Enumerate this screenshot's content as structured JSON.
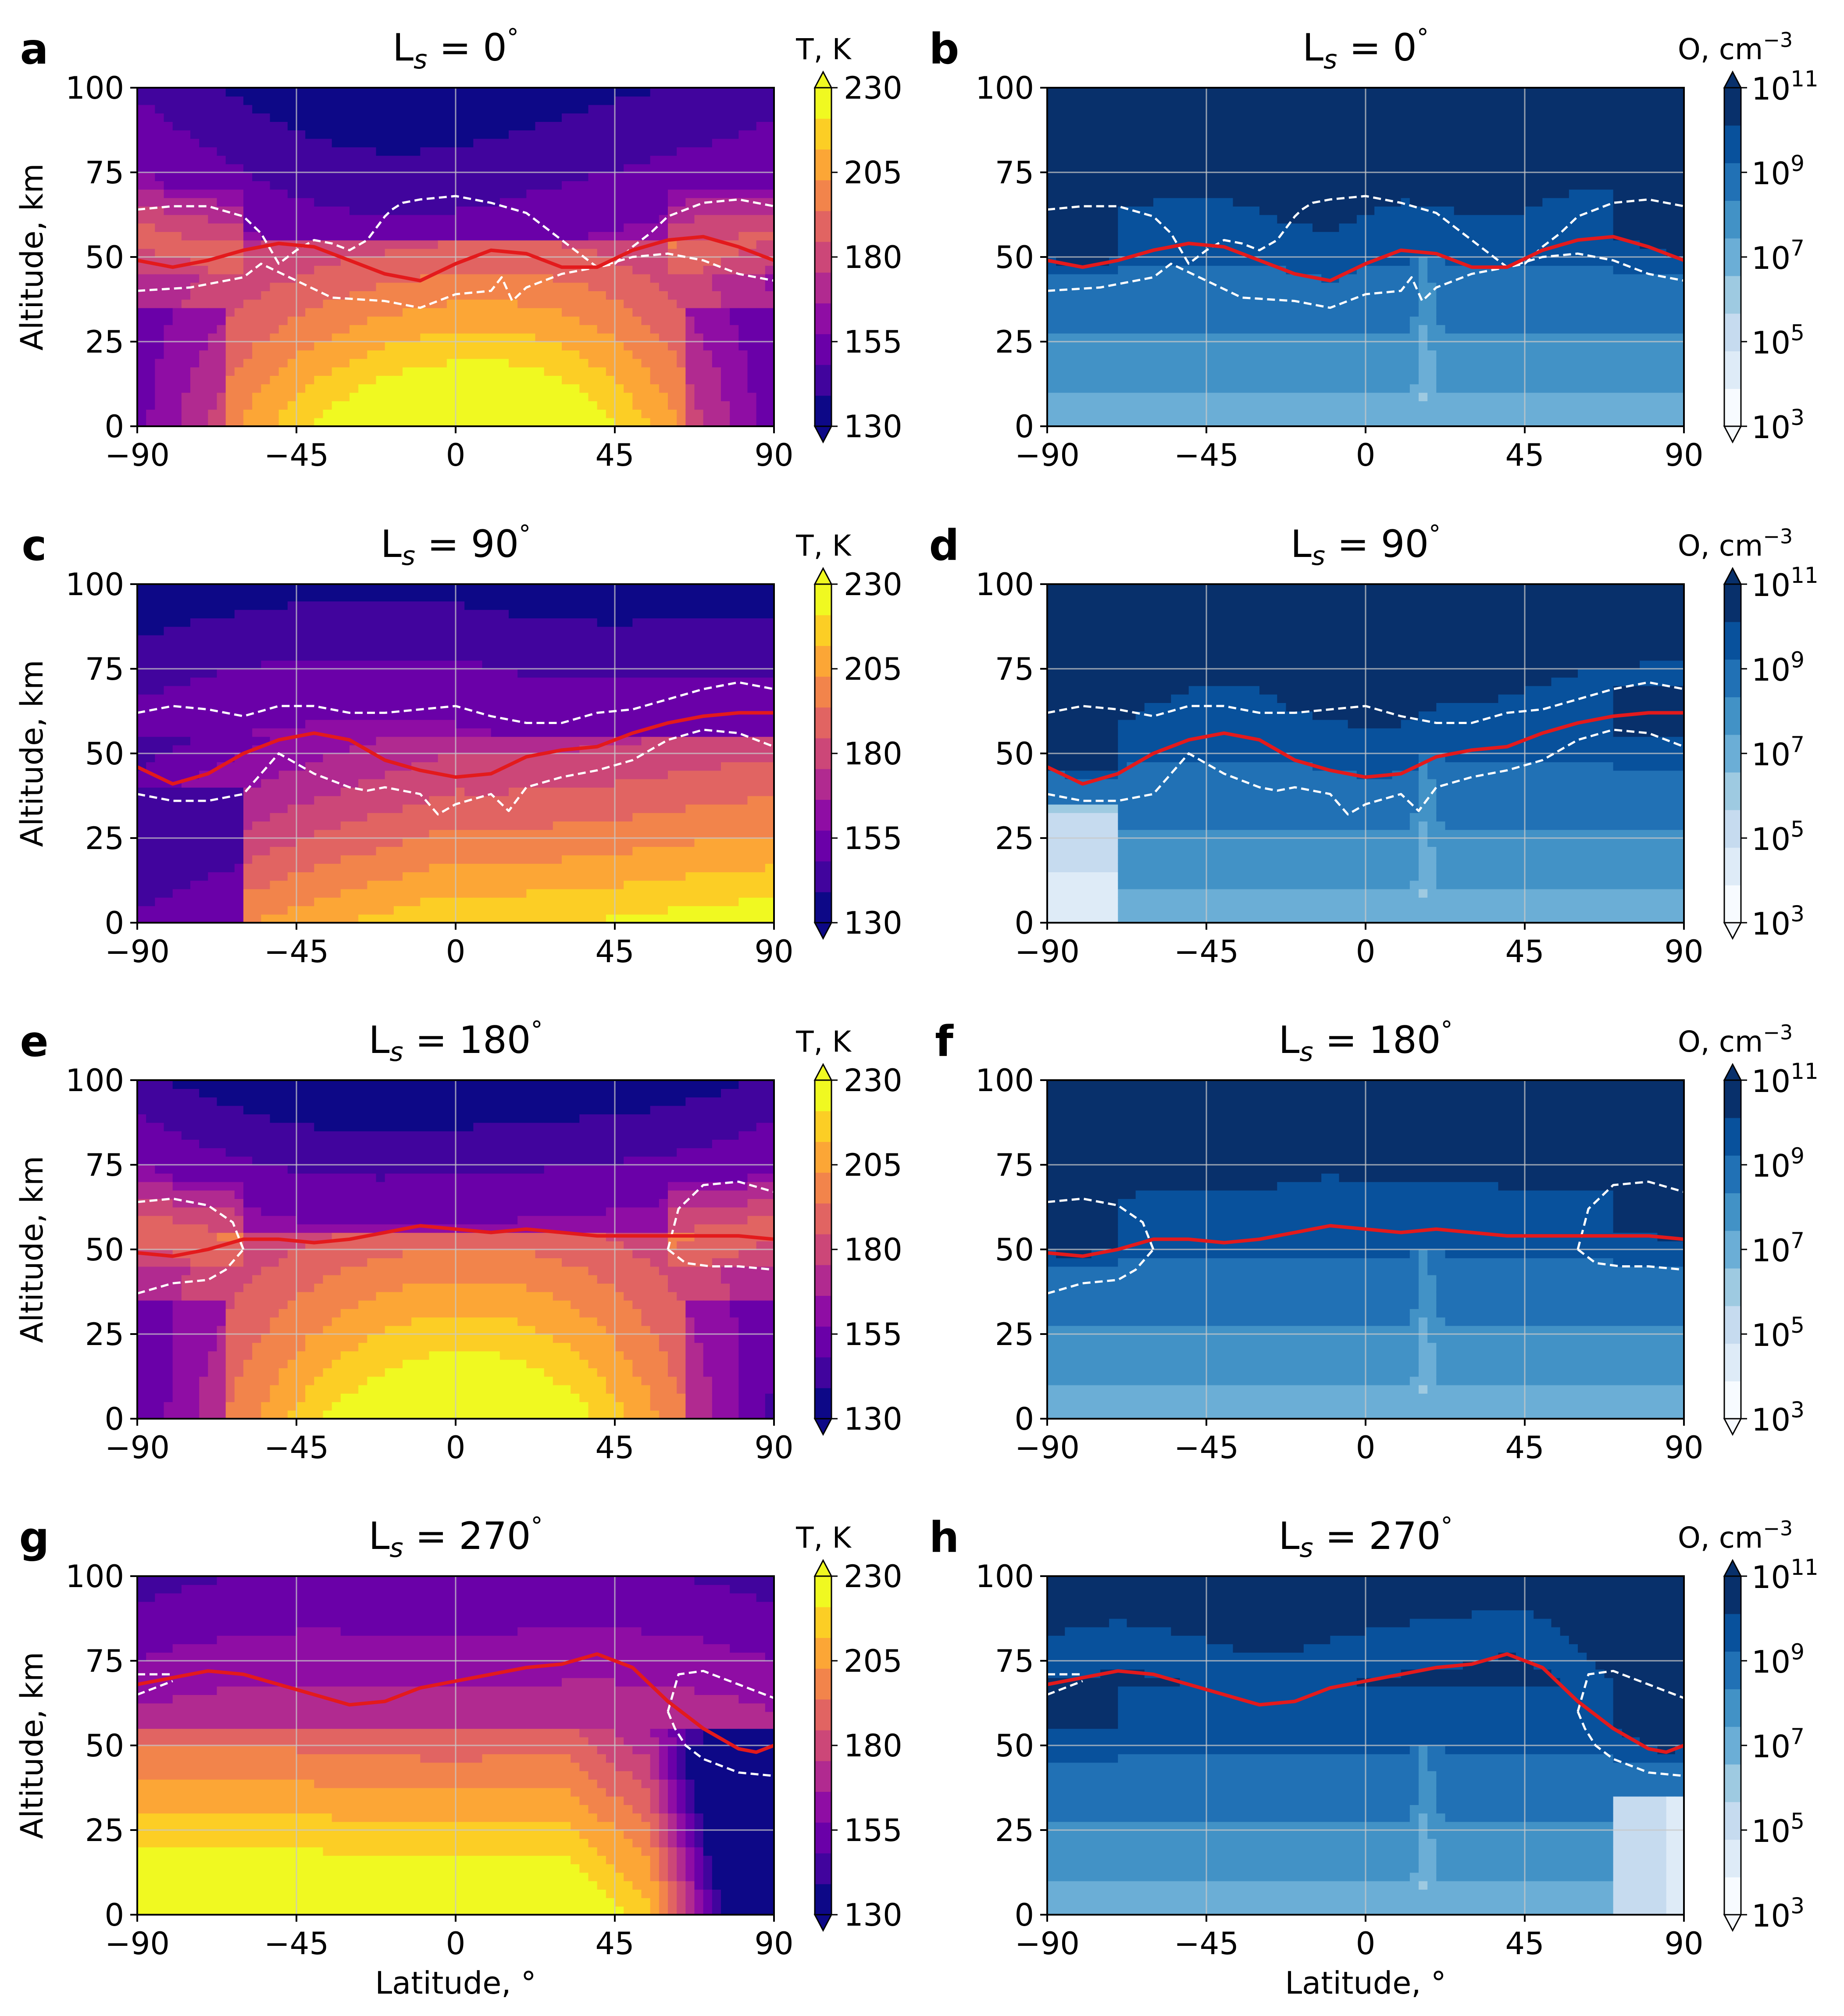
{
  "figure": {
    "xlabel": "Latitude, °",
    "ylabel": "Altitude, km",
    "x_ticks": [
      "−90",
      "−45",
      "0",
      "45",
      "90"
    ],
    "y_ticks": [
      "0",
      "25",
      "50",
      "75",
      "100"
    ]
  },
  "colorbars": {
    "temperature": {
      "title": "T, K",
      "tick_labels": [
        "230",
        "205",
        "180",
        "155",
        "130"
      ],
      "levels": [
        130,
        155,
        180,
        205,
        230
      ],
      "colors": [
        "#0d0887",
        "#41049d",
        "#6a00a8",
        "#8f0da4",
        "#b12a90",
        "#cc4778",
        "#e16462",
        "#f2844b",
        "#fca636",
        "#fcce25",
        "#f0f921"
      ]
    },
    "oxygen": {
      "title_base": "O, cm",
      "title_exp": "−3",
      "tick_base": "10",
      "tick_exponents": [
        "11",
        "9",
        "7",
        "5",
        "3"
      ],
      "colors": [
        "#f7fbff",
        "#deebf7",
        "#c6dbef",
        "#9ecae1",
        "#6baed6",
        "#4292c6",
        "#2171b5",
        "#08519c",
        "#08306b"
      ]
    }
  },
  "panels": [
    {
      "letter": "a",
      "title": "L",
      "sub": "s",
      "title_value": " = 0",
      "deg": "°",
      "field": "T"
    },
    {
      "letter": "b",
      "title": "L",
      "sub": "s",
      "title_value": " = 0",
      "deg": "°",
      "field": "O"
    },
    {
      "letter": "c",
      "title": "L",
      "sub": "s",
      "title_value": " = 90",
      "deg": "°",
      "field": "T"
    },
    {
      "letter": "d",
      "title": "L",
      "sub": "s",
      "title_value": " = 90",
      "deg": "°",
      "field": "O"
    },
    {
      "letter": "e",
      "title": "L",
      "sub": "s",
      "title_value": " = 180",
      "deg": "°",
      "field": "T"
    },
    {
      "letter": "f",
      "title": "L",
      "sub": "s",
      "title_value": " = 180",
      "deg": "°",
      "field": "O"
    },
    {
      "letter": "g",
      "title": "L",
      "sub": "s",
      "title_value": " = 270",
      "deg": "°",
      "field": "T"
    },
    {
      "letter": "h",
      "title": "L",
      "sub": "s",
      "title_value": " = 270",
      "deg": "°",
      "field": "O"
    }
  ],
  "chart_data": [
    {
      "panel": "a",
      "type": "heatmap",
      "variable": "T, K",
      "season": 0,
      "xlim": [
        -90,
        90
      ],
      "ylim": [
        0,
        100
      ],
      "clim": [
        130,
        230
      ],
      "grid": true,
      "red_line": {
        "x": [
          -90,
          -80,
          -70,
          -60,
          -50,
          -40,
          -30,
          -20,
          -10,
          0,
          10,
          20,
          30,
          40,
          50,
          60,
          70,
          80,
          90
        ],
        "y": [
          49,
          47,
          49,
          52,
          54,
          53,
          49,
          45,
          43,
          48,
          52,
          51,
          47,
          47,
          52,
          55,
          56,
          53,
          49
        ]
      },
      "dashed_upper": {
        "x": [
          -90,
          -80,
          -70,
          -60,
          -55,
          -50,
          -45,
          -40,
          -35,
          -30,
          -25,
          -20,
          -18,
          -15,
          -10,
          0,
          10,
          20,
          30,
          40,
          45,
          50,
          55,
          60,
          70,
          80,
          90
        ],
        "y": [
          64,
          65,
          65,
          62,
          57,
          48,
          52,
          55,
          54,
          52,
          55,
          62,
          64,
          66,
          67,
          68,
          66,
          63,
          55,
          47,
          48,
          53,
          57,
          62,
          66,
          67,
          65
        ]
      },
      "dashed_lower": {
        "x": [
          -90,
          -75,
          -60,
          -55,
          -45,
          -35,
          -20,
          -10,
          0,
          10,
          13,
          16,
          20,
          30,
          40,
          50,
          60,
          70,
          80,
          90
        ],
        "y": [
          40,
          41,
          44,
          48,
          43,
          38,
          37,
          35,
          39,
          40,
          44,
          37,
          41,
          45,
          47,
          50,
          51,
          49,
          45,
          43
        ]
      }
    },
    {
      "panel": "b",
      "type": "heatmap",
      "variable": "O, cm^-3",
      "season": 0,
      "xlim": [
        -90,
        90
      ],
      "ylim": [
        0,
        100
      ],
      "clim_log10": [
        3,
        11
      ],
      "grid": true,
      "red_line": {
        "x": [
          -90,
          -80,
          -70,
          -60,
          -50,
          -40,
          -30,
          -20,
          -10,
          0,
          10,
          20,
          30,
          40,
          50,
          60,
          70,
          80,
          90
        ],
        "y": [
          49,
          47,
          49,
          52,
          54,
          53,
          49,
          45,
          43,
          48,
          52,
          51,
          47,
          47,
          52,
          55,
          56,
          53,
          49
        ]
      },
      "dashed_upper": {
        "x": [
          -90,
          -80,
          -70,
          -60,
          -55,
          -50,
          -45,
          -40,
          -35,
          -30,
          -25,
          -20,
          -18,
          -15,
          -10,
          0,
          10,
          20,
          30,
          40,
          45,
          50,
          55,
          60,
          70,
          80,
          90
        ],
        "y": [
          64,
          65,
          65,
          62,
          57,
          48,
          52,
          55,
          54,
          52,
          55,
          62,
          64,
          66,
          67,
          68,
          66,
          63,
          55,
          47,
          48,
          53,
          57,
          62,
          66,
          67,
          65
        ]
      },
      "dashed_lower": {
        "x": [
          -90,
          -75,
          -60,
          -55,
          -45,
          -35,
          -20,
          -10,
          0,
          10,
          13,
          16,
          20,
          30,
          40,
          50,
          60,
          70,
          80,
          90
        ],
        "y": [
          40,
          41,
          44,
          48,
          43,
          38,
          37,
          35,
          39,
          40,
          44,
          37,
          41,
          45,
          47,
          50,
          51,
          49,
          45,
          43
        ]
      }
    },
    {
      "panel": "c",
      "type": "heatmap",
      "variable": "T, K",
      "season": 90,
      "xlim": [
        -90,
        90
      ],
      "ylim": [
        0,
        100
      ],
      "clim": [
        130,
        230
      ],
      "grid": true,
      "red_line": {
        "x": [
          -90,
          -80,
          -70,
          -60,
          -50,
          -40,
          -30,
          -20,
          -10,
          0,
          10,
          20,
          30,
          40,
          50,
          60,
          70,
          80,
          90
        ],
        "y": [
          46,
          41,
          44,
          50,
          54,
          56,
          54,
          48,
          45,
          43,
          44,
          49,
          51,
          52,
          56,
          59,
          61,
          62,
          62
        ]
      },
      "dashed_upper": {
        "x": [
          -90,
          -80,
          -70,
          -60,
          -50,
          -40,
          -30,
          -20,
          -10,
          0,
          10,
          20,
          30,
          40,
          50,
          60,
          70,
          80,
          90
        ],
        "y": [
          62,
          64,
          63,
          61,
          64,
          64,
          62,
          62,
          63,
          64,
          61,
          59,
          59,
          62,
          63,
          66,
          69,
          71,
          69
        ]
      },
      "dashed_lower": {
        "x": [
          -90,
          -80,
          -70,
          -60,
          -55,
          -50,
          -45,
          -40,
          -35,
          -30,
          -25,
          -20,
          -10,
          -5,
          0,
          10,
          15,
          20,
          30,
          40,
          50,
          60,
          70,
          80,
          90
        ],
        "y": [
          38,
          36,
          36,
          38,
          44,
          50,
          47,
          44,
          42,
          40,
          39,
          40,
          38,
          32,
          35,
          38,
          33,
          40,
          43,
          45,
          48,
          54,
          57,
          56,
          52
        ]
      }
    },
    {
      "panel": "d",
      "type": "heatmap",
      "variable": "O, cm^-3",
      "season": 90,
      "xlim": [
        -90,
        90
      ],
      "ylim": [
        0,
        100
      ],
      "clim_log10": [
        3,
        11
      ],
      "grid": true,
      "red_line": {
        "x": [
          -90,
          -80,
          -70,
          -60,
          -50,
          -40,
          -30,
          -20,
          -10,
          0,
          10,
          20,
          30,
          40,
          50,
          60,
          70,
          80,
          90
        ],
        "y": [
          46,
          41,
          44,
          50,
          54,
          56,
          54,
          48,
          45,
          43,
          44,
          49,
          51,
          52,
          56,
          59,
          61,
          62,
          62
        ]
      },
      "dashed_upper": {
        "x": [
          -90,
          -80,
          -70,
          -60,
          -50,
          -40,
          -30,
          -20,
          -10,
          0,
          10,
          20,
          30,
          40,
          50,
          60,
          70,
          80,
          90
        ],
        "y": [
          62,
          64,
          63,
          61,
          64,
          64,
          62,
          62,
          63,
          64,
          61,
          59,
          59,
          62,
          63,
          66,
          69,
          71,
          69
        ]
      },
      "dashed_lower": {
        "x": [
          -90,
          -80,
          -70,
          -60,
          -55,
          -50,
          -45,
          -40,
          -35,
          -30,
          -25,
          -20,
          -10,
          -5,
          0,
          10,
          15,
          20,
          30,
          40,
          50,
          60,
          70,
          80,
          90
        ],
        "y": [
          38,
          36,
          36,
          38,
          44,
          50,
          47,
          44,
          42,
          40,
          39,
          40,
          38,
          32,
          35,
          38,
          33,
          40,
          43,
          45,
          48,
          54,
          57,
          56,
          52
        ]
      }
    },
    {
      "panel": "e",
      "type": "heatmap",
      "variable": "T, K",
      "season": 180,
      "xlim": [
        -90,
        90
      ],
      "ylim": [
        0,
        100
      ],
      "clim": [
        130,
        230
      ],
      "grid": true,
      "red_line": {
        "x": [
          -90,
          -80,
          -70,
          -60,
          -50,
          -40,
          -30,
          -20,
          -10,
          0,
          10,
          20,
          30,
          40,
          50,
          60,
          70,
          80,
          90
        ],
        "y": [
          49,
          48,
          50,
          53,
          53,
          52,
          53,
          55,
          57,
          56,
          55,
          56,
          55,
          54,
          54,
          54,
          54,
          54,
          53
        ]
      },
      "dashed_upper": {
        "x": [
          -90,
          -80,
          -70,
          -63,
          -60
        ],
        "y": [
          64,
          65,
          63,
          58,
          50
        ]
      },
      "dashed_lower": {
        "x": [
          -90,
          -80,
          -70,
          -65,
          -60
        ],
        "y": [
          37,
          40,
          41,
          44,
          50
        ]
      },
      "dashed_upper_n": {
        "x": [
          60,
          63,
          70,
          80,
          90
        ],
        "y": [
          50,
          62,
          69,
          70,
          67
        ]
      },
      "dashed_lower_n": {
        "x": [
          60,
          65,
          72,
          80,
          90
        ],
        "y": [
          50,
          46,
          45,
          45,
          44
        ]
      }
    },
    {
      "panel": "f",
      "type": "heatmap",
      "variable": "O, cm^-3",
      "season": 180,
      "xlim": [
        -90,
        90
      ],
      "ylim": [
        0,
        100
      ],
      "clim_log10": [
        3,
        11
      ],
      "grid": true,
      "red_line": {
        "x": [
          -90,
          -80,
          -70,
          -60,
          -50,
          -40,
          -30,
          -20,
          -10,
          0,
          10,
          20,
          30,
          40,
          50,
          60,
          70,
          80,
          90
        ],
        "y": [
          49,
          48,
          50,
          53,
          53,
          52,
          53,
          55,
          57,
          56,
          55,
          56,
          55,
          54,
          54,
          54,
          54,
          54,
          53
        ]
      },
      "dashed_upper": {
        "x": [
          -90,
          -80,
          -70,
          -63,
          -60
        ],
        "y": [
          64,
          65,
          63,
          58,
          50
        ]
      },
      "dashed_lower": {
        "x": [
          -90,
          -80,
          -70,
          -65,
          -60
        ],
        "y": [
          37,
          40,
          41,
          44,
          50
        ]
      },
      "dashed_upper_n": {
        "x": [
          60,
          63,
          70,
          80,
          90
        ],
        "y": [
          50,
          62,
          69,
          70,
          67
        ]
      },
      "dashed_lower_n": {
        "x": [
          60,
          65,
          72,
          80,
          90
        ],
        "y": [
          50,
          46,
          45,
          45,
          44
        ]
      }
    },
    {
      "panel": "g",
      "type": "heatmap",
      "variable": "T, K",
      "season": 270,
      "xlim": [
        -90,
        90
      ],
      "ylim": [
        0,
        100
      ],
      "clim": [
        130,
        230
      ],
      "grid": true,
      "red_line": {
        "x": [
          -90,
          -80,
          -70,
          -60,
          -50,
          -40,
          -30,
          -20,
          -10,
          0,
          10,
          20,
          30,
          40,
          50,
          60,
          70,
          80,
          85,
          90
        ],
        "y": [
          68,
          70,
          72,
          71,
          68,
          65,
          62,
          63,
          67,
          69,
          71,
          73,
          74,
          77,
          73,
          63,
          55,
          49,
          48,
          50
        ]
      },
      "dashed_upper": {
        "x": [
          -90,
          -85,
          -80
        ],
        "y": [
          71,
          71,
          71
        ]
      },
      "dashed_lower": {
        "x": [
          -90,
          -85,
          -80
        ],
        "y": [
          65,
          67,
          69
        ]
      },
      "dashed_upper_n": {
        "x": [
          60,
          63,
          70,
          80,
          90
        ],
        "y": [
          60,
          71,
          72,
          68,
          64
        ]
      },
      "dashed_lower_n": {
        "x": [
          60,
          62,
          65,
          70,
          80,
          90
        ],
        "y": [
          60,
          55,
          50,
          46,
          42,
          41
        ]
      }
    },
    {
      "panel": "h",
      "type": "heatmap",
      "variable": "O, cm^-3",
      "season": 270,
      "xlim": [
        -90,
        90
      ],
      "ylim": [
        0,
        100
      ],
      "clim_log10": [
        3,
        11
      ],
      "grid": true,
      "red_line": {
        "x": [
          -90,
          -80,
          -70,
          -60,
          -50,
          -40,
          -30,
          -20,
          -10,
          0,
          10,
          20,
          30,
          40,
          50,
          60,
          70,
          80,
          85,
          90
        ],
        "y": [
          68,
          70,
          72,
          71,
          68,
          65,
          62,
          63,
          67,
          69,
          71,
          73,
          74,
          77,
          73,
          63,
          55,
          49,
          48,
          50
        ]
      },
      "dashed_upper": {
        "x": [
          -90,
          -85,
          -80
        ],
        "y": [
          71,
          71,
          71
        ]
      },
      "dashed_lower": {
        "x": [
          -90,
          -85,
          -80
        ],
        "y": [
          65,
          67,
          69
        ]
      },
      "dashed_upper_n": {
        "x": [
          60,
          63,
          70,
          80,
          90
        ],
        "y": [
          60,
          71,
          72,
          68,
          64
        ]
      },
      "dashed_lower_n": {
        "x": [
          60,
          62,
          65,
          70,
          80,
          90
        ],
        "y": [
          60,
          55,
          50,
          46,
          42,
          41
        ]
      }
    }
  ]
}
